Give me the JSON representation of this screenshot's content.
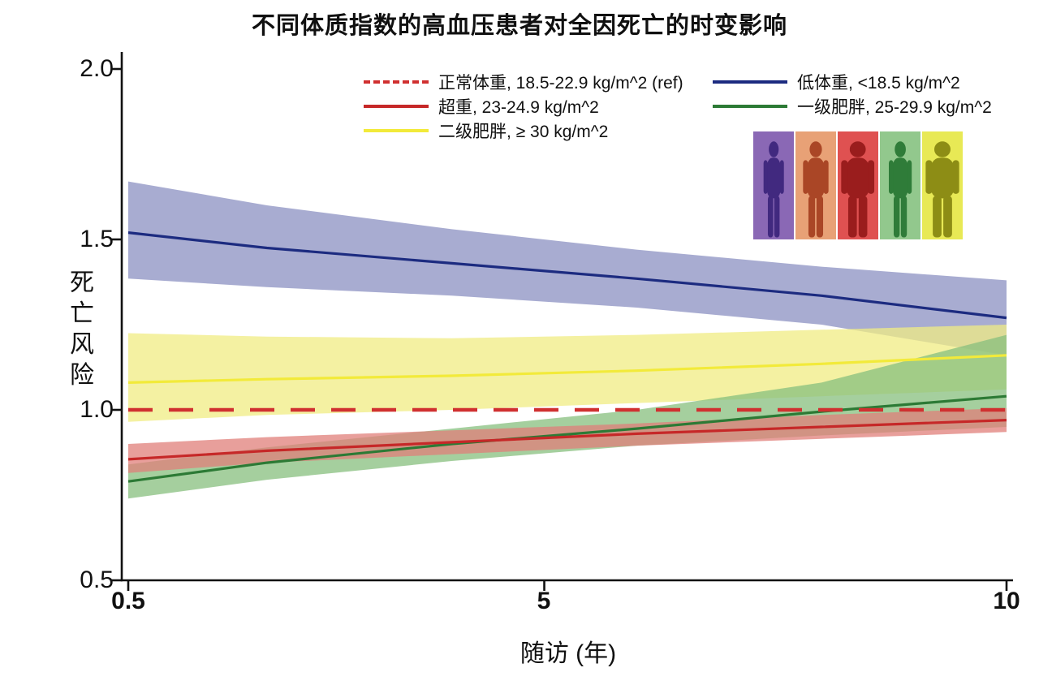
{
  "chart_data": {
    "type": "line",
    "title": "不同体质指数的高血压患者对全因死亡的时变影响",
    "xlabel": "随访 (年)",
    "ylabel": "死亡风险",
    "xlim": [
      0.5,
      10
    ],
    "ylim": [
      0.5,
      2.0
    ],
    "grid": false,
    "legend_position": "top",
    "x_ticks": [
      {
        "v": 0.5,
        "label": "0.5"
      },
      {
        "v": 5,
        "label": "5"
      },
      {
        "v": 10,
        "label": "10"
      }
    ],
    "y_ticks": [
      {
        "v": 2.0,
        "label": "2.0"
      },
      {
        "v": 1.5,
        "label": "1.5"
      },
      {
        "v": 1.0,
        "label": "1.0"
      },
      {
        "v": 0.5,
        "label": "0.5"
      }
    ],
    "series": [
      {
        "id": "underweight",
        "name": "低体重, <18.5 kg/m^2",
        "color": "#1c2b80",
        "band_color": "#8b90c2",
        "band_opacity": 0.75,
        "dash": false,
        "x": [
          0.5,
          2,
          4,
          6,
          8,
          10
        ],
        "y": [
          1.52,
          1.475,
          1.43,
          1.385,
          1.335,
          1.27
        ],
        "upper": [
          1.67,
          1.6,
          1.53,
          1.47,
          1.42,
          1.38
        ],
        "lower": [
          1.385,
          1.36,
          1.335,
          1.3,
          1.25,
          1.16
        ]
      },
      {
        "id": "class2-obesity",
        "name": "二级肥胖, ≥ 30 kg/m^2",
        "color": "#f2ea3a",
        "band_color": "#f0ec83",
        "band_opacity": 0.75,
        "dash": false,
        "x": [
          0.5,
          2,
          4,
          6,
          8,
          10
        ],
        "y": [
          1.08,
          1.09,
          1.1,
          1.115,
          1.135,
          1.16
        ],
        "upper": [
          1.225,
          1.215,
          1.21,
          1.22,
          1.235,
          1.25
        ],
        "lower": [
          0.965,
          0.985,
          1.0,
          1.02,
          1.04,
          1.06
        ]
      },
      {
        "id": "class1-obesity",
        "name": "一级肥胖, 25-29.9 kg/m^2",
        "color": "#2c7a35",
        "band_color": "#87bf7d",
        "band_opacity": 0.75,
        "dash": false,
        "x": [
          0.5,
          2,
          4,
          6,
          8,
          10
        ],
        "y": [
          0.79,
          0.845,
          0.9,
          0.945,
          0.995,
          1.04
        ],
        "upper": [
          0.84,
          0.89,
          0.945,
          1.0,
          1.08,
          1.22
        ],
        "lower": [
          0.74,
          0.795,
          0.85,
          0.895,
          0.925,
          0.95
        ]
      },
      {
        "id": "overweight",
        "name": "超重, 23-24.9 kg/m^2",
        "color": "#c62828",
        "band_color": "#e07f79",
        "band_opacity": 0.75,
        "dash": false,
        "x": [
          0.5,
          2,
          4,
          6,
          8,
          10
        ],
        "y": [
          0.855,
          0.88,
          0.905,
          0.93,
          0.95,
          0.97
        ],
        "upper": [
          0.9,
          0.92,
          0.94,
          0.96,
          0.985,
          1.005
        ],
        "lower": [
          0.815,
          0.845,
          0.87,
          0.895,
          0.915,
          0.935
        ]
      },
      {
        "id": "normal-ref",
        "name": "正常体重, 18.5-22.9 kg/m^2 (ref)",
        "color": "#d03030",
        "dash": true,
        "x": [
          0.5,
          10
        ],
        "y": [
          1.0,
          1.0
        ]
      }
    ]
  },
  "legend": {
    "items": [
      {
        "label": "正常体重, 18.5-22.9 kg/m^2 (ref)",
        "color": "#d03030",
        "dash": true
      },
      {
        "label": "低体重, <18.5 kg/m^2",
        "color": "#1c2b80",
        "dash": false
      },
      {
        "label": "超重, 23-24.9 kg/m^2",
        "color": "#c62828",
        "dash": false
      },
      {
        "label": "一级肥胖, 25-29.9 kg/m^2",
        "color": "#2c7a35",
        "dash": false
      },
      {
        "label": "二级肥胖, ≥ 30 kg/m^2",
        "color": "#f2ea3a",
        "dash": false
      }
    ]
  },
  "inset": {
    "name": "bmi-silhouettes",
    "panels": [
      {
        "bg": "#8a68b5",
        "figure": "#41297f",
        "width_scale": 0.8
      },
      {
        "bg": "#e8a176",
        "figure": "#aa4626",
        "width_scale": 1.0
      },
      {
        "bg": "#df5151",
        "figure": "#9a1d1d",
        "width_scale": 1.3
      },
      {
        "bg": "#92c88d",
        "figure": "#2f7c39",
        "width_scale": 0.9
      },
      {
        "bg": "#e8e955",
        "figure": "#8d8d15",
        "width_scale": 1.55
      }
    ]
  }
}
